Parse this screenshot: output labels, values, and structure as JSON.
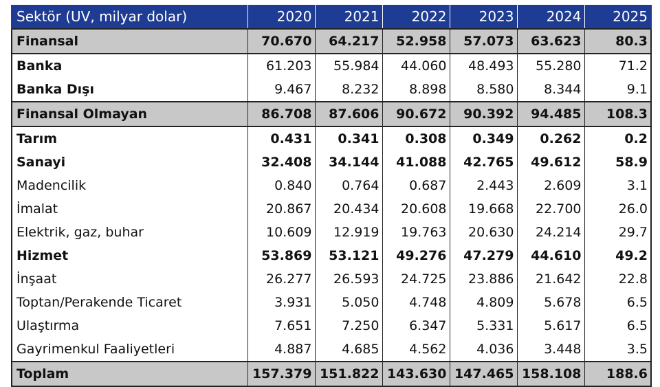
{
  "table": {
    "header_label": "Sektör (UV, milyar dolar)",
    "years": [
      "2020",
      "2021",
      "2022",
      "2023",
      "2024",
      "2025"
    ],
    "rows": [
      {
        "label": "Finansal",
        "values": [
          "70.670",
          "64.217",
          "52.958",
          "57.073",
          "63.623",
          "80.3"
        ],
        "style": "shade"
      },
      {
        "label": "Banka",
        "values": [
          "61.203",
          "55.984",
          "44.060",
          "48.493",
          "55.280",
          "71.2"
        ],
        "style": "label-bold"
      },
      {
        "label": "Banka Dışı",
        "values": [
          "9.467",
          "8.232",
          "8.898",
          "8.580",
          "8.344",
          "9.1"
        ],
        "style": "label-bold"
      },
      {
        "label": "Finansal Olmayan",
        "values": [
          "86.708",
          "87.606",
          "90.672",
          "90.392",
          "94.485",
          "108.3"
        ],
        "style": "shade"
      },
      {
        "label": "Tarım",
        "values": [
          "0.431",
          "0.341",
          "0.308",
          "0.349",
          "0.262",
          "0.2"
        ],
        "style": "bold"
      },
      {
        "label": "Sanayi",
        "values": [
          "32.408",
          "34.144",
          "41.088",
          "42.765",
          "49.612",
          "58.9"
        ],
        "style": "bold"
      },
      {
        "label": "Madencilik",
        "values": [
          "0.840",
          "0.764",
          "0.687",
          "2.443",
          "2.609",
          "3.1"
        ],
        "style": "normal"
      },
      {
        "label": "İmalat",
        "values": [
          "20.867",
          "20.434",
          "20.608",
          "19.668",
          "22.700",
          "26.0"
        ],
        "style": "normal"
      },
      {
        "label": "Elektrik, gaz, buhar",
        "values": [
          "10.609",
          "12.919",
          "19.763",
          "20.630",
          "24.214",
          "29.7"
        ],
        "style": "normal"
      },
      {
        "label": "Hizmet",
        "values": [
          "53.869",
          "53.121",
          "49.276",
          "47.279",
          "44.610",
          "49.2"
        ],
        "style": "bold"
      },
      {
        "label": "İnşaat",
        "values": [
          "26.277",
          "26.593",
          "24.725",
          "23.886",
          "21.642",
          "22.8"
        ],
        "style": "normal"
      },
      {
        "label": "Toptan/Perakende Ticaret",
        "values": [
          "3.931",
          "5.050",
          "4.748",
          "4.809",
          "5.678",
          "6.5"
        ],
        "style": "normal"
      },
      {
        "label": "Ulaştırma",
        "values": [
          "7.651",
          "7.250",
          "6.347",
          "5.331",
          "5.617",
          "6.5"
        ],
        "style": "normal"
      },
      {
        "label": "Gayrimenkul Faaliyetleri",
        "values": [
          "4.887",
          "4.685",
          "4.562",
          "4.036",
          "3.448",
          "3.5"
        ],
        "style": "normal"
      },
      {
        "label": "Toplam",
        "values": [
          "157.379",
          "151.822",
          "143.630",
          "147.465",
          "158.108",
          "188.6"
        ],
        "style": "shade"
      }
    ]
  },
  "colors": {
    "header_bg": "#1f3c94",
    "header_text": "#ffffff",
    "shade_bg": "#c8c8c8",
    "border": "#222222"
  }
}
